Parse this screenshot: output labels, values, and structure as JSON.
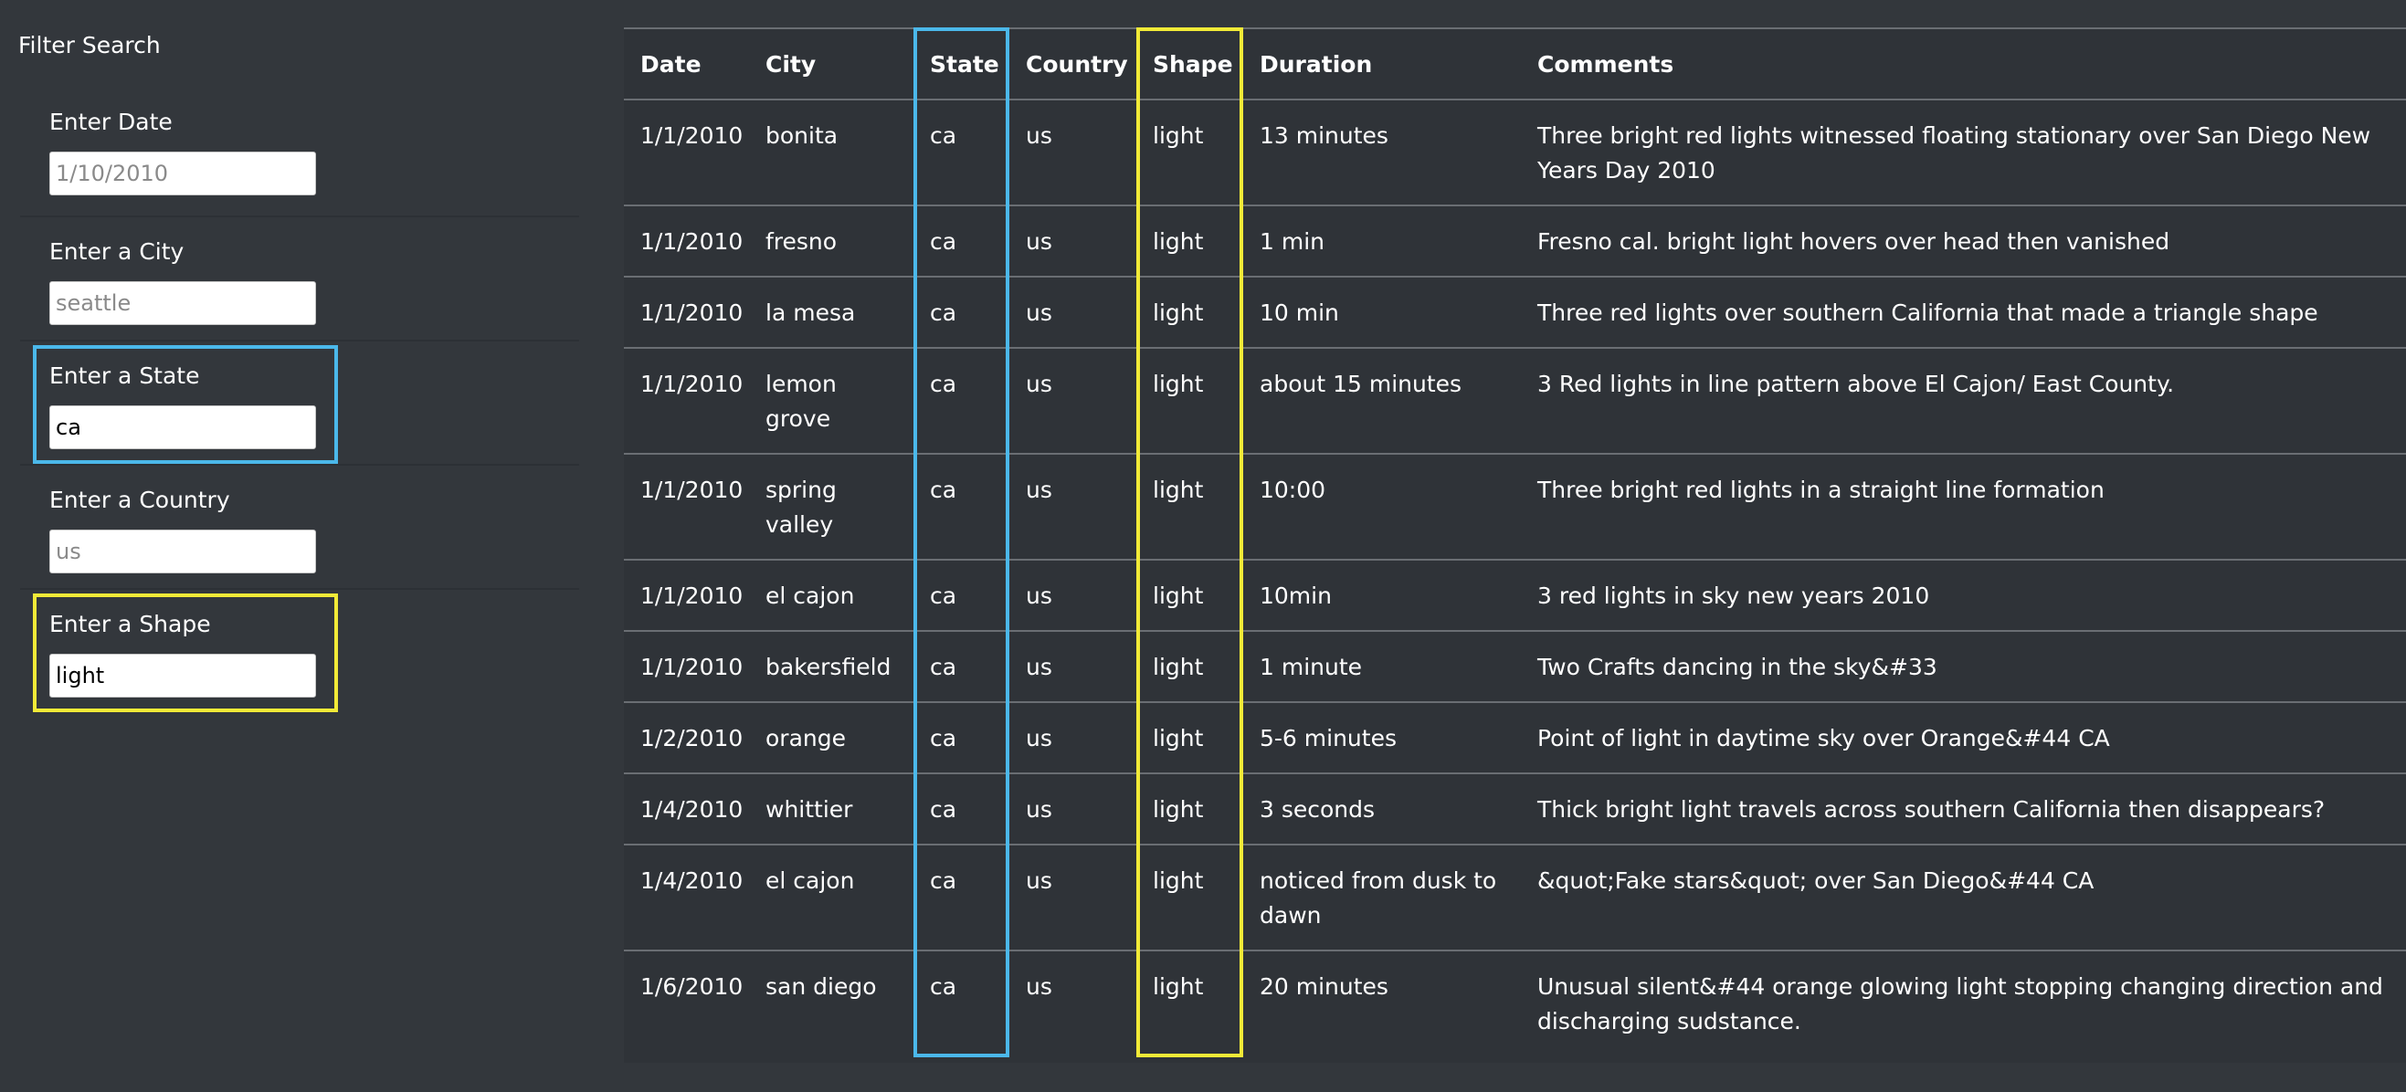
{
  "filter": {
    "title": "Filter Search",
    "fields": [
      {
        "label": "Enter Date",
        "value": "",
        "placeholder": "1/10/2010"
      },
      {
        "label": "Enter a City",
        "value": "",
        "placeholder": "seattle"
      },
      {
        "label": "Enter a State",
        "value": "ca",
        "placeholder": ""
      },
      {
        "label": "Enter a Country",
        "value": "",
        "placeholder": "us"
      },
      {
        "label": "Enter a Shape",
        "value": "light",
        "placeholder": ""
      }
    ]
  },
  "highlight_colors": {
    "state": "#4bb8ea",
    "shape": "#f2ea37"
  },
  "table": {
    "headers": [
      "Date",
      "City",
      "State",
      "Country",
      "Shape",
      "Duration",
      "Comments"
    ],
    "rows": [
      [
        "1/1/2010",
        "bonita",
        "ca",
        "us",
        "light",
        "13 minutes",
        "Three bright red lights witnessed floating stationary over San Diego New Years Day 2010"
      ],
      [
        "1/1/2010",
        "fresno",
        "ca",
        "us",
        "light",
        "1 min",
        "Fresno cal. bright light hovers over head then vanished"
      ],
      [
        "1/1/2010",
        "la mesa",
        "ca",
        "us",
        "light",
        "10 min",
        "Three red lights over southern California that made a triangle shape"
      ],
      [
        "1/1/2010",
        "lemon grove",
        "ca",
        "us",
        "light",
        "about 15 minutes",
        "3 Red lights in line pattern above El Cajon/ East County."
      ],
      [
        "1/1/2010",
        "spring valley",
        "ca",
        "us",
        "light",
        "10:00",
        "Three bright red lights in a straight line formation"
      ],
      [
        "1/1/2010",
        "el cajon",
        "ca",
        "us",
        "light",
        "10min",
        "3 red lights in sky new years 2010"
      ],
      [
        "1/1/2010",
        "bakersfield",
        "ca",
        "us",
        "light",
        "1 minute",
        "Two Crafts dancing in the sky&#33"
      ],
      [
        "1/2/2010",
        "orange",
        "ca",
        "us",
        "light",
        "5-6 minutes",
        "Point of light in daytime sky over Orange&#44 CA"
      ],
      [
        "1/4/2010",
        "whittier",
        "ca",
        "us",
        "light",
        "3 seconds",
        "Thick bright light travels across southern California then disappears?"
      ],
      [
        "1/4/2010",
        "el cajon",
        "ca",
        "us",
        "light",
        "noticed from dusk to dawn",
        "&quot;Fake stars&quot; over San Diego&#44 CA"
      ],
      [
        "1/6/2010",
        "san diego",
        "ca",
        "us",
        "light",
        "20 minutes",
        "Unusual silent&#44 orange glowing light stopping changing direction and discharging sudstance."
      ]
    ]
  }
}
